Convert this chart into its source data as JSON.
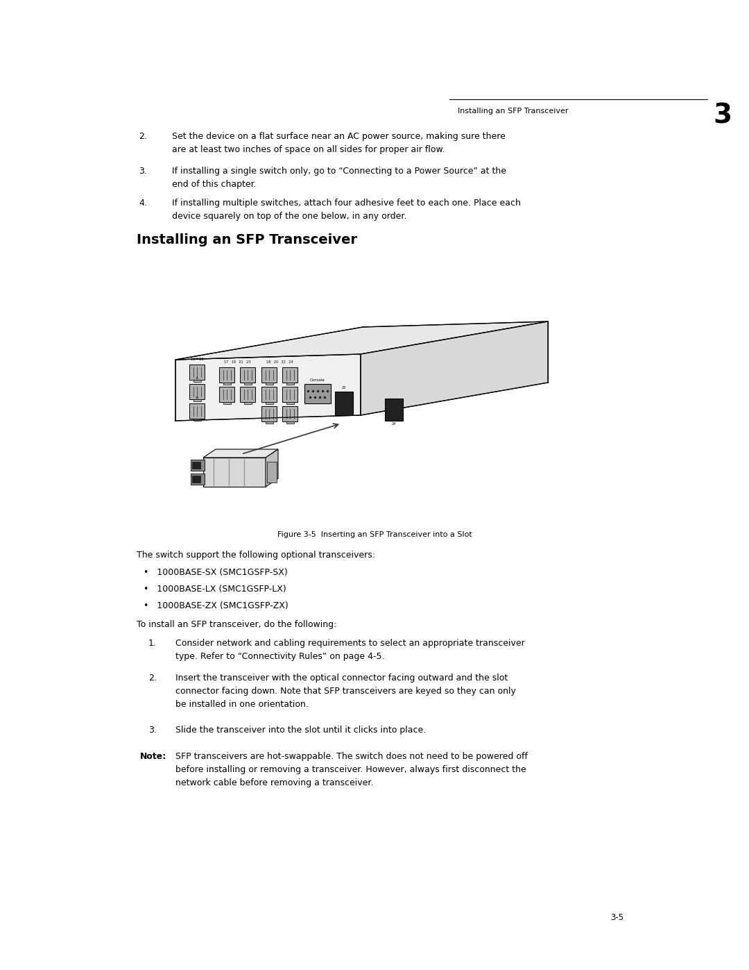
{
  "bg_color": "#ffffff",
  "page_width": 10.8,
  "page_height": 13.97,
  "header_text": "Installing an SFP Transceiver",
  "header_chapter": "3",
  "section_title": "Installing an SFP Transceiver",
  "figure_caption": "Figure 3-5  Inserting an SFP Transceiver into a Slot",
  "body_text_1": "The switch support the following optional transceivers:",
  "bullet_items": [
    "•   1000BASE-SX (SMC1GSFP-SX)",
    "•   1000BASE-LX (SMC1GSFP-LX)",
    "•   1000BASE-ZX (SMC1GSFP-ZX)"
  ],
  "body_text_2": "To install an SFP transceiver, do the following:",
  "numbered_items_top": [
    {
      "num": "2.",
      "text": "Set the device on a flat surface near an AC power source, making sure there\nare at least two inches of space on all sides for proper air flow."
    },
    {
      "num": "3.",
      "text": "If installing a single switch only, go to “Connecting to a Power Source” at the\nend of this chapter."
    },
    {
      "num": "4.",
      "text": "If installing multiple switches, attach four adhesive feet to each one. Place each\ndevice squarely on top of the one below, in any order."
    }
  ],
  "numbered_items_bottom": [
    {
      "num": "1.",
      "text": "Consider network and cabling requirements to select an appropriate transceiver\ntype. Refer to “Connectivity Rules” on page 4-5."
    },
    {
      "num": "2.",
      "text": "Insert the transceiver with the optical connector facing outward and the slot\nconnector facing down. Note that SFP transceivers are keyed so they can only\nbe installed in one orientation."
    },
    {
      "num": "3.",
      "text": "Slide the transceiver into the slot until it clicks into place."
    }
  ],
  "note_label": "Note:",
  "note_text": "SFP transceivers are hot-swappable. The switch does not need to be powered off\nbefore installing or removing a transceiver. However, always first disconnect the\nnetwork cable before removing a transceiver.",
  "page_num": "3-5",
  "text_color": "#000000",
  "light_gray": "#cccccc",
  "mid_gray": "#888888",
  "dark_gray": "#444444",
  "font_size_body": 9.0,
  "font_size_header": 8.0,
  "font_size_section": 14,
  "font_size_caption": 8.0,
  "font_size_page": 8.5,
  "font_size_chapter": 28
}
